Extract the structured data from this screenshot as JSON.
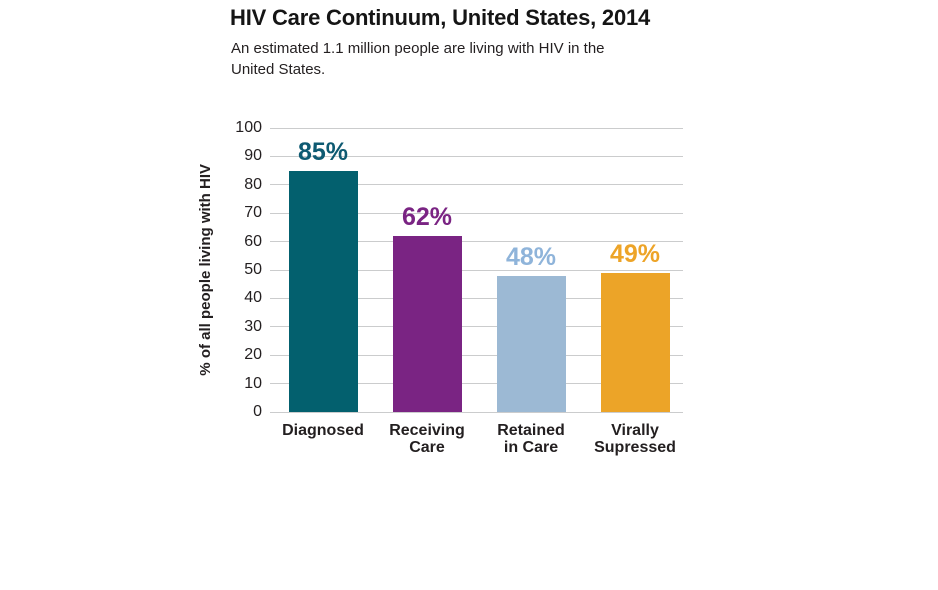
{
  "chart_data": {
    "type": "bar",
    "title": "HIV Care Continuum, United States, 2014",
    "subtitle": "An estimated 1.1 million people are living with HIV in the\nUnited States.",
    "categories": [
      "Diagnosed",
      "Receiving Care",
      "Retained in Care",
      "Virally Supressed"
    ],
    "categories_display": [
      "Diagnosed",
      "Receiving\nCare",
      "Retained\nin Care",
      "Virally\nSupressed"
    ],
    "values": [
      85,
      62,
      48,
      49
    ],
    "value_labels": [
      "85%",
      "62%",
      "48%",
      "49%"
    ],
    "bar_colors": [
      "#03606e",
      "#7a2483",
      "#9cb9d4",
      "#eca428"
    ],
    "value_label_colors": [
      "#0e5a72",
      "#7a2483",
      "#8fb4da",
      "#eda428"
    ],
    "xlabel": "",
    "ylabel": "% of all people living with HIV",
    "ylim": [
      0,
      100
    ],
    "yticks": [
      0,
      10,
      20,
      30,
      40,
      50,
      60,
      70,
      80,
      90,
      100
    ],
    "grid": "horizontal gridlines on",
    "gridline_color": "#cbcccd",
    "legend": "none",
    "text_color": "#231f20",
    "background_color": "#ffffff"
  }
}
